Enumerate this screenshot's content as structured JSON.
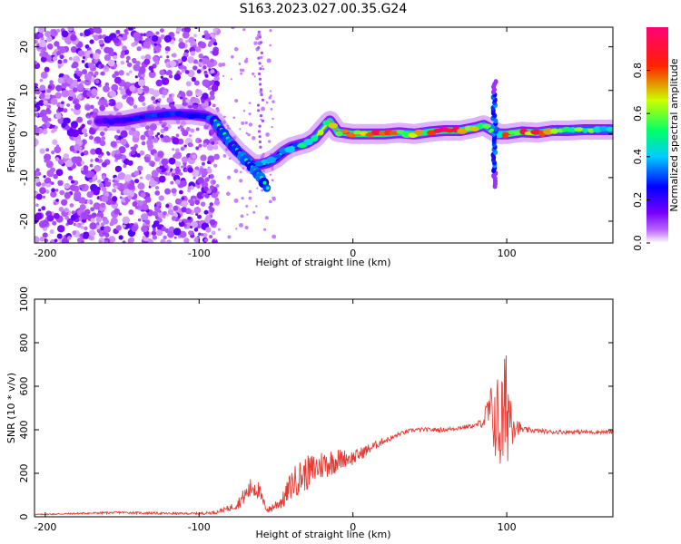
{
  "figure": {
    "title": "S163.2023.027.00.35.G24"
  },
  "chart_data": [
    {
      "type": "heatmap",
      "name": "spectrogram",
      "xlabel": "Height of straight line (km)",
      "ylabel": "Frequency (Hz)",
      "xlim": [
        -207,
        169
      ],
      "ylim": [
        -25,
        24.5
      ],
      "xticks": [
        -200,
        -100,
        0,
        100
      ],
      "yticks": [
        20,
        10,
        0,
        -10,
        -20
      ],
      "grid": false,
      "colorbar": {
        "label": "Normalized spectral amplitude",
        "range": [
          0,
          1
        ],
        "ticks": [
          "0.0",
          "0.2",
          "0.4",
          "0.6",
          "0.8"
        ],
        "colors": [
          "#ffffff",
          "#8800ff",
          "#0000ff",
          "#00ccff",
          "#00ff66",
          "#ccff00",
          "#ff2200",
          "#ff0077"
        ]
      },
      "ridge": {
        "x": [
          -165,
          -150,
          -135,
          -120,
          -105,
          -95,
          -90,
          -85,
          -80,
          -75,
          -70,
          -65,
          -60,
          -55,
          -50,
          -45,
          -40,
          -35,
          -30,
          -25,
          -20,
          -15,
          -10,
          0,
          10,
          20,
          30,
          40,
          50,
          60,
          70,
          80,
          85,
          90,
          95,
          100,
          110,
          120,
          130,
          140,
          150,
          160,
          169
        ],
        "y": [
          3,
          3,
          4,
          4.5,
          4.5,
          4,
          3,
          0,
          -2,
          -4,
          -5.5,
          -7,
          -7,
          -6.5,
          -5.5,
          -4,
          -3,
          -2.5,
          -2,
          -1,
          1,
          3,
          0.5,
          0,
          0,
          0,
          0.3,
          0,
          0.5,
          0.8,
          0.8,
          1.5,
          2,
          1,
          0,
          0,
          0.5,
          0.3,
          0.8,
          0.8,
          1,
          1,
          1
        ],
        "strength": [
          0.25,
          0.25,
          0.3,
          0.3,
          0.3,
          0.35,
          0.3,
          0.3,
          0.35,
          0.4,
          0.4,
          0.35,
          0.4,
          0.6,
          0.5,
          0.4,
          0.4,
          0.55,
          0.6,
          0.6,
          0.65,
          0.7,
          0.8,
          0.9,
          0.95,
          0.95,
          0.7,
          0.75,
          0.8,
          0.95,
          0.85,
          0.75,
          0.8,
          0.55,
          0.6,
          0.85,
          0.95,
          0.85,
          0.6,
          0.65,
          0.6,
          0.6,
          0.6
        ]
      },
      "branch": {
        "x": [
          -90,
          -80,
          -70,
          -60,
          -55
        ],
        "y": [
          3,
          -2,
          -6,
          -10,
          -13
        ]
      }
    },
    {
      "type": "line",
      "name": "snr",
      "xlabel": "Height of straight line (km)",
      "ylabel": "SNR (10 * v/v)",
      "xlim": [
        -207,
        169
      ],
      "ylim": [
        0,
        1000
      ],
      "xticks": [
        -200,
        -100,
        0,
        100
      ],
      "yticks": [
        0,
        200,
        400,
        600,
        800,
        1000
      ],
      "grid": false,
      "color": "#e83a32",
      "x": [
        -207,
        -180,
        -150,
        -120,
        -100,
        -90,
        -80,
        -75,
        -70,
        -65,
        -62,
        -58,
        -55,
        -45,
        -40,
        -35,
        -30,
        -25,
        -20,
        -15,
        -10,
        -5,
        0,
        5,
        10,
        15,
        20,
        25,
        30,
        40,
        50,
        60,
        70,
        80,
        85,
        88,
        92,
        95,
        98,
        100,
        103,
        106,
        110,
        120,
        130,
        140,
        150,
        160,
        169
      ],
      "y": [
        10,
        15,
        20,
        15,
        15,
        20,
        40,
        60,
        100,
        140,
        130,
        60,
        30,
        80,
        150,
        180,
        200,
        220,
        240,
        250,
        260,
        270,
        270,
        290,
        310,
        330,
        350,
        360,
        380,
        400,
        400,
        400,
        410,
        420,
        440,
        480,
        460,
        420,
        430,
        520,
        470,
        420,
        400,
        395,
        390,
        390,
        390,
        390,
        390
      ],
      "noise": [
        3,
        4,
        5,
        5,
        5,
        8,
        15,
        25,
        40,
        55,
        50,
        25,
        15,
        40,
        70,
        80,
        80,
        75,
        70,
        65,
        55,
        40,
        35,
        30,
        25,
        20,
        15,
        12,
        10,
        10,
        10,
        10,
        10,
        10,
        30,
        100,
        180,
        250,
        280,
        300,
        150,
        50,
        15,
        10,
        10,
        10,
        10,
        10,
        10
      ]
    }
  ]
}
